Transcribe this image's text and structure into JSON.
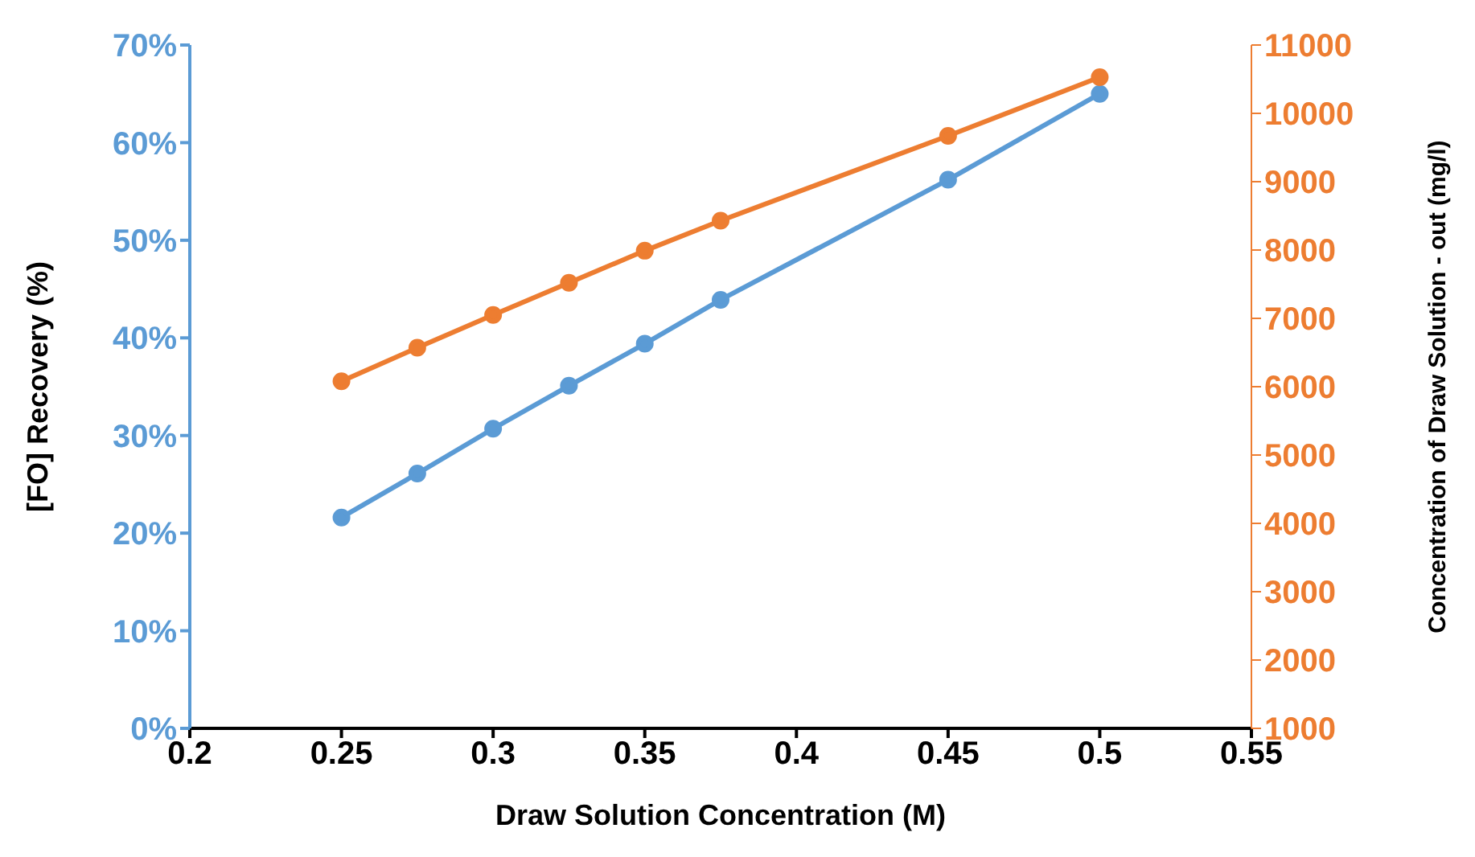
{
  "chart_data": {
    "type": "line",
    "xlabel": "Draw Solution Concentration (M)",
    "ylabel": "[FO] Recovery (%)",
    "y2label": "Concentration of Draw Solution - out (mg/l)",
    "x": [
      0.25,
      0.275,
      0.3,
      0.325,
      0.35,
      0.375,
      0.45,
      0.5
    ],
    "xlim": [
      0.2,
      0.55
    ],
    "xticks": [
      0.2,
      0.25,
      0.3,
      0.35,
      0.4,
      0.45,
      0.5,
      0.55
    ],
    "ylim": [
      0,
      70
    ],
    "yticks": [
      {
        "value": 0,
        "label": "0%"
      },
      {
        "value": 10,
        "label": "10%"
      },
      {
        "value": 20,
        "label": "20%"
      },
      {
        "value": 30,
        "label": "30%"
      },
      {
        "value": 40,
        "label": "40%"
      },
      {
        "value": 50,
        "label": "50%"
      },
      {
        "value": 60,
        "label": "60%"
      },
      {
        "value": 70,
        "label": "70%"
      }
    ],
    "y2lim": [
      1000,
      11000
    ],
    "y2ticks": [
      1000,
      2000,
      3000,
      4000,
      5000,
      6000,
      7000,
      8000,
      9000,
      10000,
      11000
    ],
    "series": [
      {
        "color": "#5b9bd5",
        "values": [
          21.6,
          26.1,
          30.7,
          35.1,
          39.4,
          43.9,
          56.2,
          65.0
        ]
      },
      {
        "color": "#ed7d31",
        "axis": "y2",
        "values": [
          6080,
          6570,
          7050,
          7520,
          7990,
          8430,
          9670,
          10530
        ]
      }
    ],
    "marker": "circle",
    "line_style": "solid",
    "grid": false,
    "legend": false
  }
}
